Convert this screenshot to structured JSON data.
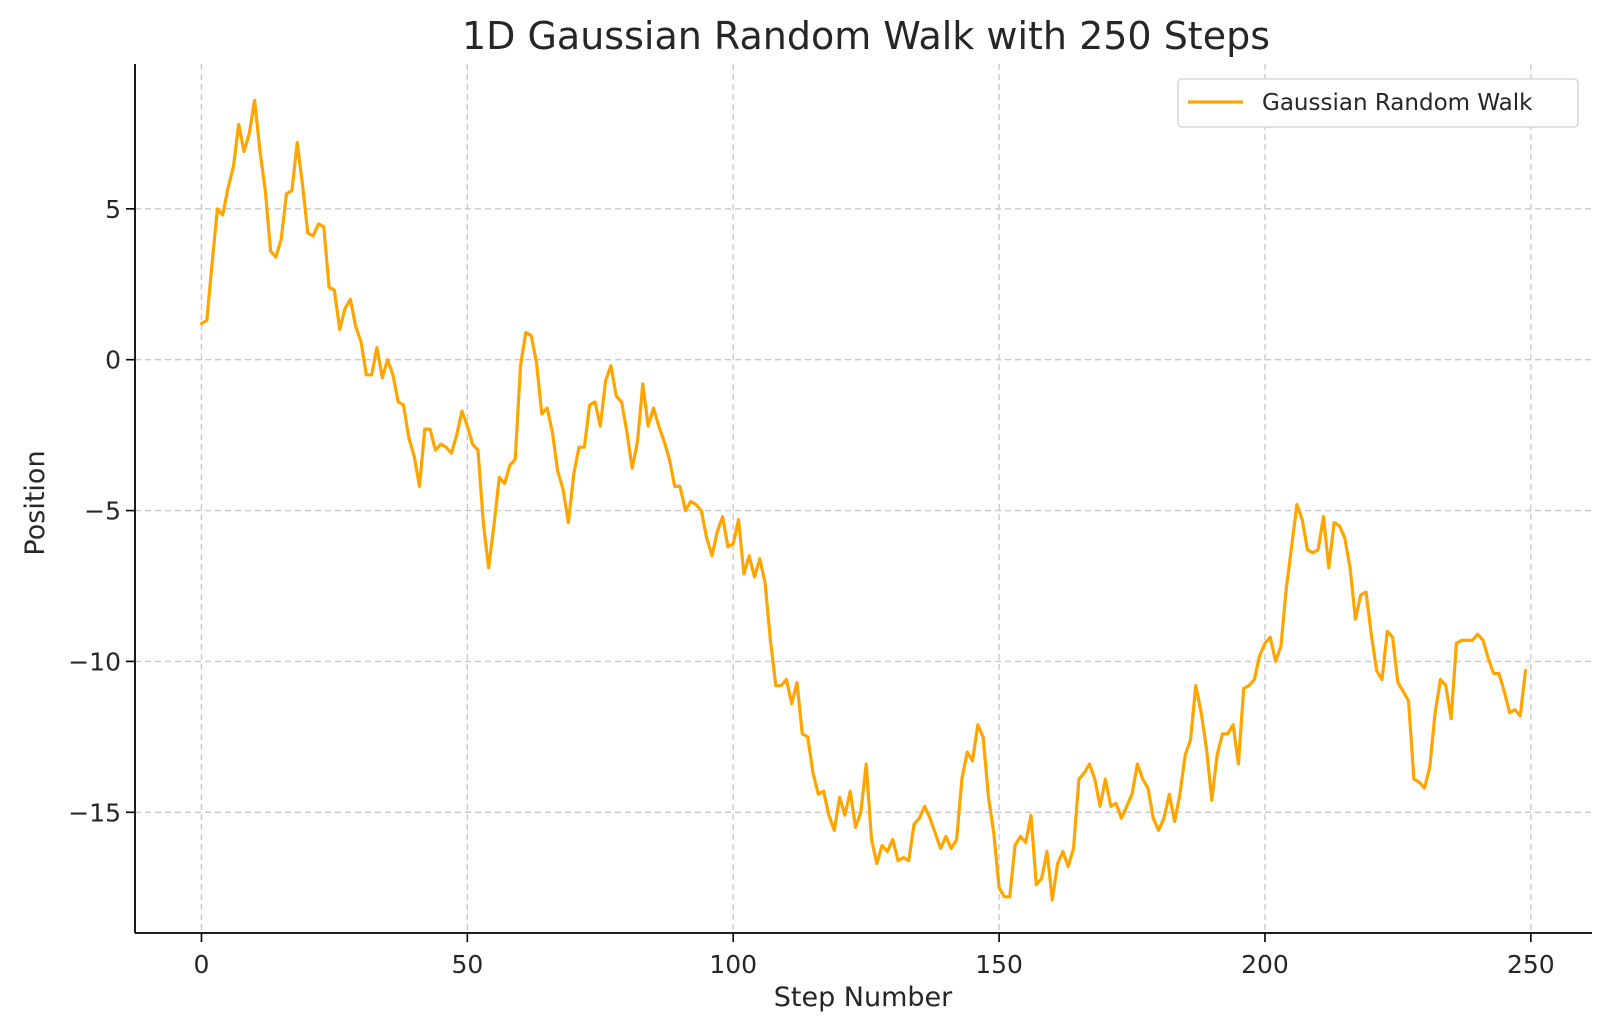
{
  "chart_data": {
    "type": "line",
    "title": "1D Gaussian Random Walk with 250 Steps",
    "xlabel": "Step Number",
    "ylabel": "Position",
    "xlim": [
      -12.5,
      261.5
    ],
    "ylim": [
      -19.0,
      9.8
    ],
    "x_ticks": [
      0,
      50,
      100,
      150,
      200,
      250
    ],
    "y_ticks": [
      5,
      0,
      -5,
      -10,
      -15
    ],
    "x_tick_labels": [
      "0",
      "50",
      "100",
      "150",
      "200",
      "250"
    ],
    "y_tick_labels": [
      "5",
      "0",
      "−5",
      "−10",
      "−15"
    ],
    "grid": true,
    "legend": {
      "position": "top-right"
    },
    "series": [
      {
        "name": "Gaussian Random Walk",
        "color": "#FFA500",
        "x_start": 0,
        "values": [
          1.2,
          1.3,
          3.2,
          5.0,
          4.8,
          5.7,
          6.4,
          7.8,
          6.9,
          7.5,
          8.6,
          6.9,
          5.6,
          3.6,
          3.4,
          4.0,
          5.5,
          5.6,
          7.2,
          5.8,
          4.2,
          4.1,
          4.5,
          4.4,
          2.4,
          2.3,
          1.0,
          1.7,
          2.0,
          1.1,
          0.6,
          -0.5,
          -0.5,
          0.4,
          -0.6,
          0.0,
          -0.5,
          -1.4,
          -1.5,
          -2.6,
          -3.2,
          -4.2,
          -2.3,
          -2.3,
          -3.0,
          -2.8,
          -2.9,
          -3.1,
          -2.5,
          -1.7,
          -2.2,
          -2.8,
          -3.0,
          -5.4,
          -6.9,
          -5.5,
          -3.9,
          -4.1,
          -3.5,
          -3.3,
          -0.2,
          0.9,
          0.8,
          -0.1,
          -1.8,
          -1.6,
          -2.4,
          -3.7,
          -4.3,
          -5.4,
          -3.8,
          -2.9,
          -2.9,
          -1.5,
          -1.4,
          -2.2,
          -0.7,
          -0.2,
          -1.2,
          -1.4,
          -2.4,
          -3.6,
          -2.7,
          -0.8,
          -2.2,
          -1.6,
          -2.2,
          -2.7,
          -3.3,
          -4.2,
          -4.2,
          -5.0,
          -4.7,
          -4.8,
          -5.0,
          -5.9,
          -6.5,
          -5.7,
          -5.2,
          -6.2,
          -6.1,
          -5.3,
          -7.1,
          -6.5,
          -7.2,
          -6.6,
          -7.4,
          -9.3,
          -10.8,
          -10.8,
          -10.6,
          -11.4,
          -10.7,
          -12.4,
          -12.5,
          -13.7,
          -14.4,
          -14.3,
          -15.1,
          -15.6,
          -14.5,
          -15.1,
          -14.3,
          -15.5,
          -15.0,
          -13.4,
          -15.9,
          -16.7,
          -16.1,
          -16.3,
          -15.9,
          -16.6,
          -16.5,
          -16.6,
          -15.4,
          -15.2,
          -14.8,
          -15.2,
          -15.7,
          -16.2,
          -15.8,
          -16.2,
          -15.9,
          -13.9,
          -13.0,
          -13.3,
          -12.1,
          -12.5,
          -14.5,
          -15.7,
          -17.5,
          -17.8,
          -17.8,
          -16.1,
          -15.8,
          -16.0,
          -15.1,
          -17.4,
          -17.2,
          -16.3,
          -17.9,
          -16.7,
          -16.3,
          -16.8,
          -16.2,
          -13.9,
          -13.7,
          -13.4,
          -13.9,
          -14.8,
          -13.9,
          -14.8,
          -14.7,
          -15.2,
          -14.8,
          -14.4,
          -13.4,
          -13.9,
          -14.2,
          -15.2,
          -15.6,
          -15.2,
          -14.4,
          -15.3,
          -14.4,
          -13.1,
          -12.6,
          -10.8,
          -11.7,
          -12.9,
          -14.6,
          -13.1,
          -12.4,
          -12.4,
          -12.1,
          -13.4,
          -10.9,
          -10.8,
          -10.6,
          -9.8,
          -9.4,
          -9.2,
          -10.0,
          -9.5,
          -7.6,
          -6.2,
          -4.8,
          -5.3,
          -6.3,
          -6.4,
          -6.3,
          -5.2,
          -6.9,
          -5.4,
          -5.5,
          -5.9,
          -6.9,
          -8.6,
          -7.8,
          -7.7,
          -9.1,
          -10.3,
          -10.6,
          -9.0,
          -9.2,
          -10.7,
          -11.0,
          -11.3,
          -13.9,
          -14.0,
          -14.2,
          -13.5,
          -11.7,
          -10.6,
          -10.8,
          -11.9,
          -9.4,
          -9.3,
          -9.3,
          -9.3,
          -9.1,
          -9.3,
          -9.9,
          -10.4,
          -10.4,
          -11.0,
          -11.7,
          -11.6,
          -11.8,
          -10.3
        ]
      }
    ]
  }
}
